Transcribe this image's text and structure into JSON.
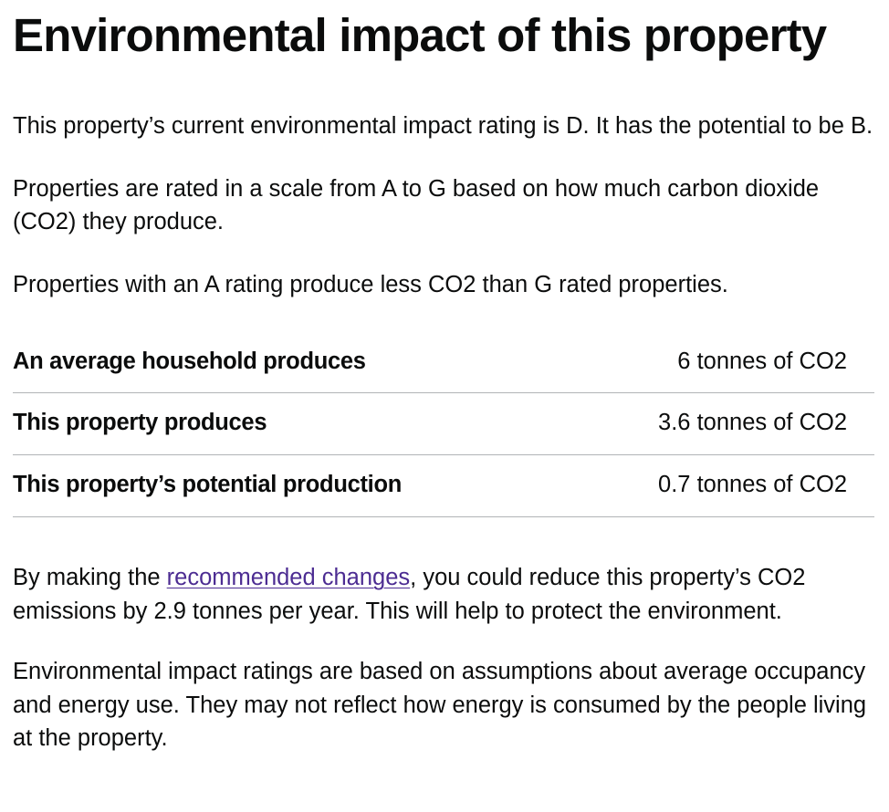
{
  "heading": "Environmental impact of this property",
  "intro": {
    "rating_text": "This property’s current environmental impact rating is D. It has the potential to be B.",
    "scale_text": "Properties are rated in a scale from A to G based on how much carbon dioxide (CO2) they produce.",
    "comparison_text": "Properties with an A rating produce less CO2 than G rated properties."
  },
  "summary": {
    "rows": [
      {
        "label": "An average household produces",
        "value": "6 tonnes of CO2"
      },
      {
        "label": "This property produces",
        "value": "3.6 tonnes of CO2"
      },
      {
        "label": "This property’s potential production",
        "value": "0.7 tonnes of CO2"
      }
    ]
  },
  "recommendation": {
    "prefix": "By making the ",
    "link_text": "recommended changes",
    "suffix": ", you could reduce this property’s CO2 emissions by 2.9 tonnes per year. This will help to protect the environment."
  },
  "disclaimer": "Environmental impact ratings are based on assumptions about average occupancy and energy use. They may not reflect how energy is consumed by the people living at the property.",
  "colors": {
    "text": "#0b0c0c",
    "link_visited": "#4c2c92",
    "border": "#b1b4b6"
  }
}
